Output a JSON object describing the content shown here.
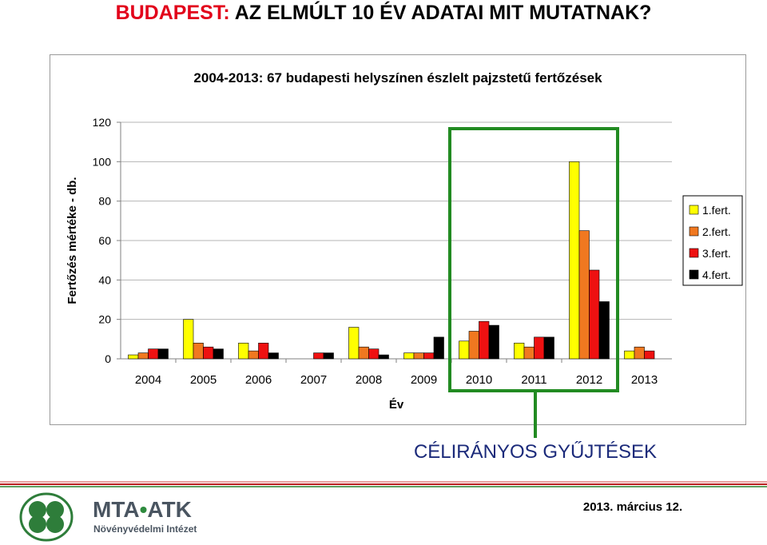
{
  "slide": {
    "title_highlight": "BUDAPEST:",
    "title_rest": "AZ ELMÚLT 10 ÉV ADATAI MIT MUTATNAK?",
    "callout": "CÉLIRÁNYOS GYŰJTÉSEK",
    "date": "2013. március 12."
  },
  "brand": {
    "name_left": "MTA",
    "name_dot": "•",
    "name_right": "ATK",
    "subtitle": "Növényvédelmi Intézet"
  },
  "colors": {
    "title_accent": "#e2001a",
    "highlight_box": "#228b22",
    "callout_text": "#1b2a7a"
  },
  "chart_data": {
    "type": "bar",
    "title": "2004-2013: 67 budapesti helyszínen észlelt pajzstetű fertőzések",
    "xlabel": "Év",
    "ylabel": "Fertőzés mértéke - db.",
    "ylim": [
      0,
      120
    ],
    "yticks": [
      0,
      20,
      40,
      60,
      80,
      100,
      120
    ],
    "grid": true,
    "legend_position": "right",
    "categories": [
      "2004",
      "2005",
      "2006",
      "2007",
      "2008",
      "2009",
      "2010",
      "2011",
      "2012",
      "2013"
    ],
    "series": [
      {
        "name": "1.fert.",
        "color": "#ffff00",
        "values": [
          2,
          20,
          8,
          0,
          16,
          3,
          9,
          8,
          100,
          4
        ]
      },
      {
        "name": "2.fert.",
        "color": "#f07820",
        "values": [
          3,
          8,
          4,
          0,
          6,
          3,
          14,
          6,
          65,
          6
        ]
      },
      {
        "name": "3.fert.",
        "color": "#ee1111",
        "values": [
          5,
          6,
          8,
          3,
          5,
          3,
          19,
          11,
          45,
          4
        ]
      },
      {
        "name": "4.fert.",
        "color": "#000000",
        "values": [
          5,
          5,
          3,
          3,
          2,
          11,
          17,
          11,
          29,
          0
        ]
      }
    ],
    "highlight_categories": [
      "2010",
      "2011",
      "2012"
    ]
  }
}
